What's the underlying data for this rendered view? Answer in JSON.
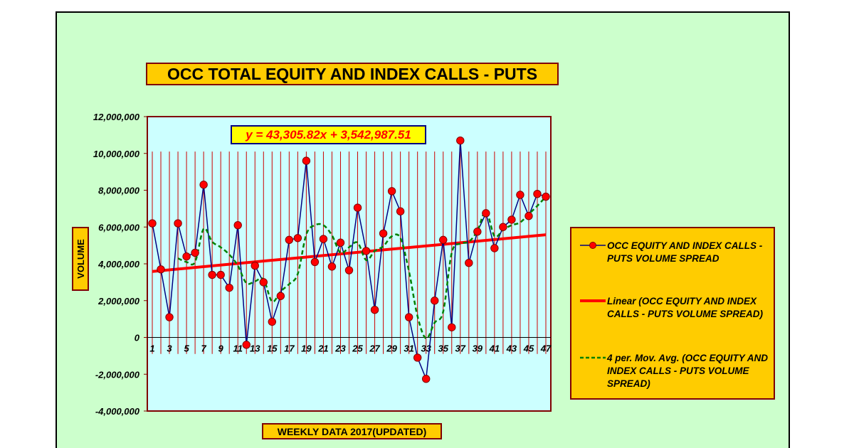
{
  "chart_data": {
    "type": "line",
    "title": "OCC TOTAL EQUITY AND INDEX CALLS - PUTS",
    "xlabel": "WEEKLY DATA 2017(UPDATED)",
    "ylabel": "VOLUME",
    "equation": "y = 43,305.82x + 3,542,987.51",
    "ylim": [
      -4000000,
      12000000
    ],
    "ytick_values": [
      -4000000,
      -2000000,
      0,
      2000000,
      4000000,
      6000000,
      8000000,
      10000000,
      12000000
    ],
    "ytick_labels": [
      "-4,000,000",
      "-2,000,000",
      "0",
      "2,000,000",
      "4,000,000",
      "6,000,000",
      "8,000,000",
      "10,000,000",
      "12,000,000"
    ],
    "xtick_labels": [
      "1",
      "3",
      "5",
      "7",
      "9",
      "11",
      "13",
      "15",
      "17",
      "19",
      "21",
      "23",
      "25",
      "27",
      "29",
      "31",
      "33",
      "35",
      "37",
      "39",
      "41",
      "43",
      "45",
      "47"
    ],
    "x": [
      1,
      2,
      3,
      4,
      5,
      6,
      7,
      8,
      9,
      10,
      11,
      12,
      13,
      14,
      15,
      16,
      17,
      18,
      19,
      20,
      21,
      22,
      23,
      24,
      25,
      26,
      27,
      28,
      29,
      30,
      31,
      32,
      33,
      34,
      35,
      36,
      37,
      38,
      39,
      40,
      41,
      42,
      43,
      44,
      45,
      46,
      47
    ],
    "grid": "vertical drop lines",
    "legend_position": "right",
    "series": [
      {
        "name": "OCC EQUITY AND INDEX CALLS - PUTS VOLUME SPREAD",
        "style": "line-marker",
        "color": "#000080",
        "marker_color": "#ff0000",
        "values": [
          6200000,
          3700000,
          1100000,
          6200000,
          4400000,
          4600000,
          8300000,
          3400000,
          3400000,
          2700000,
          6100000,
          -400000,
          3900000,
          3000000,
          850000,
          2250000,
          5300000,
          5400000,
          9600000,
          4100000,
          5350000,
          3850000,
          5150000,
          3650000,
          7050000,
          4700000,
          1500000,
          5650000,
          7950000,
          6850000,
          1100000,
          -1100000,
          -2250000,
          2000000,
          5300000,
          550000,
          10700000,
          4050000,
          5750000,
          6750000,
          4850000,
          6000000,
          6400000,
          7750000,
          6600000,
          7800000,
          7650000
        ]
      },
      {
        "name": "Linear (OCC EQUITY AND INDEX CALLS - PUTS VOLUME SPREAD)",
        "style": "line",
        "color": "#ff0000",
        "values": [
          3586293,
          5578361
        ],
        "x": [
          1,
          47
        ]
      },
      {
        "name": "4 per. Mov. Avg. (OCC EQUITY AND INDEX CALLS - PUTS VOLUME SPREAD)",
        "style": "dashed",
        "color": "#008000",
        "x": [
          4,
          5,
          6,
          7,
          8,
          9,
          10,
          11,
          12,
          13,
          14,
          15,
          16,
          17,
          18,
          19,
          20,
          21,
          22,
          23,
          24,
          25,
          26,
          27,
          28,
          29,
          30,
          31,
          32,
          33,
          34,
          35,
          36,
          37,
          38,
          39,
          40,
          41,
          42,
          43,
          44,
          45,
          46,
          47
        ],
        "values": [
          4300000,
          4100000,
          4100000,
          5900000,
          5200000,
          4900000,
          4500000,
          3900000,
          2950000,
          3050000,
          3150000,
          1950000,
          2500000,
          2900000,
          3450000,
          5600000,
          6100000,
          6100000,
          5550000,
          4600000,
          4900000,
          5150000,
          4200000,
          4700000,
          4950000,
          5500000,
          5400000,
          3600000,
          1150000,
          -50000,
          800000,
          1400000,
          4600000,
          5100000,
          5200000,
          5800000,
          6850000,
          5500000,
          5850000,
          6100000,
          6250000,
          6700000,
          7150000,
          7650000
        ]
      }
    ]
  }
}
